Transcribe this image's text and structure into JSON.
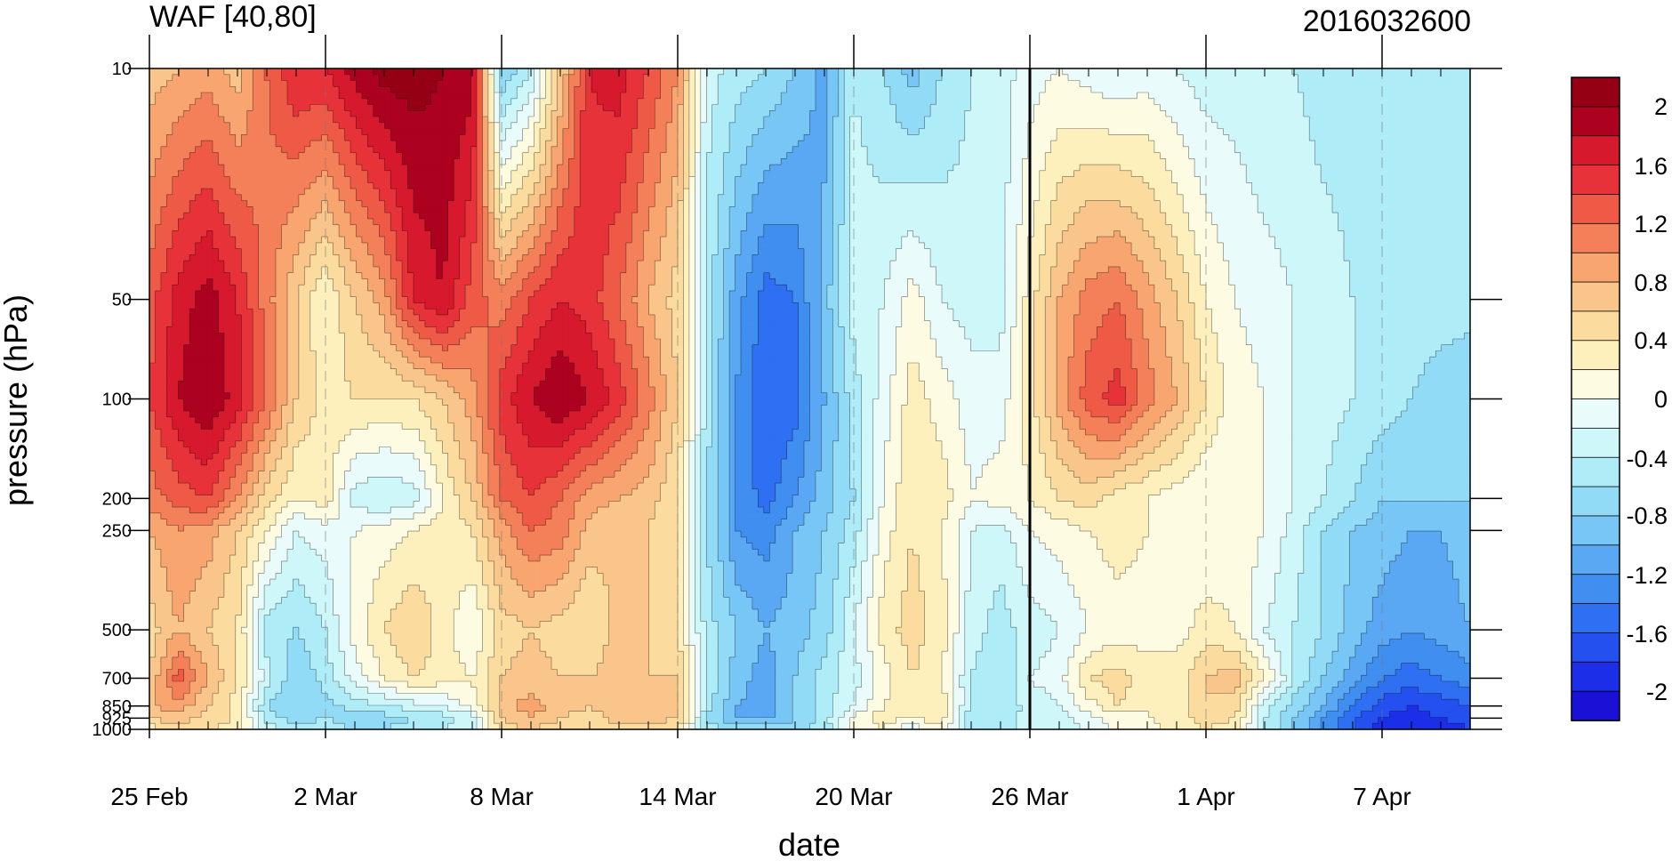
{
  "chart_data": {
    "type": "heatmap",
    "title": "WAF [40,80]",
    "subtitle": "2016032600",
    "xlabel": "date",
    "ylabel": "pressure (hPa)",
    "x_ticks": [
      "25 Feb",
      "2 Mar",
      "8 Mar",
      "14 Mar",
      "20 Mar",
      "26 Mar",
      "1 Apr",
      "7 Apr"
    ],
    "x_dates": [
      "2016-02-25",
      "2016-02-26",
      "2016-02-27",
      "2016-02-28",
      "2016-02-29",
      "2016-03-01",
      "2016-03-02",
      "2016-03-03",
      "2016-03-04",
      "2016-03-05",
      "2016-03-06",
      "2016-03-07",
      "2016-03-08",
      "2016-03-09",
      "2016-03-10",
      "2016-03-11",
      "2016-03-12",
      "2016-03-13",
      "2016-03-14",
      "2016-03-15",
      "2016-03-16",
      "2016-03-17",
      "2016-03-18",
      "2016-03-19",
      "2016-03-20",
      "2016-03-21",
      "2016-03-22",
      "2016-03-23",
      "2016-03-24",
      "2016-03-25",
      "2016-03-26",
      "2016-03-27",
      "2016-03-28",
      "2016-03-29",
      "2016-03-30",
      "2016-03-31",
      "2016-04-01",
      "2016-04-02",
      "2016-04-03",
      "2016-04-04",
      "2016-04-05",
      "2016-04-06",
      "2016-04-07",
      "2016-04-08",
      "2016-04-09",
      "2016-04-10"
    ],
    "y_ticks": [
      10,
      50,
      100,
      200,
      250,
      500,
      700,
      850,
      925,
      1000
    ],
    "y_scale": "log",
    "y_reversed": true,
    "ylim": [
      10,
      1000
    ],
    "marked_date": "2016-03-26",
    "levels": [
      1000,
      925,
      850,
      700,
      500,
      250,
      200,
      100,
      50,
      10
    ],
    "values": [
      [
        0.3,
        0.5,
        0.4,
        0.3,
        -0.3,
        -0.5,
        -0.4,
        -0.6,
        -0.6,
        -0.5,
        -0.4,
        -0.3,
        0.5,
        0.6,
        0.4,
        0.4,
        0.5,
        0.4,
        0.4,
        -0.5,
        -0.7,
        -0.6,
        -0.7,
        -0.5,
        0.0,
        0.2,
        -0.2,
        0.2,
        -0.6,
        -0.5,
        -0.3,
        -0.3,
        -0.2,
        0.1,
        0.1,
        0.3,
        0.4,
        0.3,
        -0.4,
        -0.8,
        -1.2,
        -1.6,
        -1.9,
        -2.0,
        -1.9,
        -1.8
      ],
      [
        0.6,
        0.7,
        0.5,
        0.4,
        -0.5,
        -0.7,
        -0.6,
        -0.8,
        -0.7,
        -0.6,
        -0.5,
        -0.3,
        0.6,
        0.8,
        0.6,
        0.5,
        0.7,
        0.7,
        0.6,
        -0.6,
        -1.0,
        -1.1,
        -0.8,
        -0.5,
        0.1,
        0.3,
        0.2,
        0.3,
        -0.6,
        -0.5,
        -0.3,
        -0.3,
        -0.1,
        0.1,
        0.2,
        0.3,
        0.5,
        0.4,
        -0.4,
        -0.8,
        -1.2,
        -1.6,
        -1.8,
        -1.9,
        -1.8,
        -1.7
      ],
      [
        0.8,
        0.9,
        0.6,
        0.3,
        -0.6,
        -0.8,
        -0.7,
        -0.5,
        -0.4,
        -0.3,
        -0.2,
        0.1,
        0.7,
        0.9,
        0.7,
        0.6,
        0.7,
        0.8,
        0.7,
        -0.5,
        -1.0,
        -1.1,
        -0.8,
        -0.5,
        -0.2,
        0.2,
        0.4,
        0.3,
        -0.4,
        -0.6,
        -0.3,
        -0.2,
        0.1,
        0.4,
        0.2,
        0.3,
        0.6,
        0.5,
        -0.3,
        -0.7,
        -1.0,
        -1.4,
        -1.7,
        -1.8,
        -1.7,
        -1.6
      ],
      [
        0.6,
        1.3,
        0.8,
        0.4,
        -0.3,
        -0.8,
        -0.5,
        -0.1,
        0.2,
        0.4,
        0.3,
        0.2,
        0.6,
        0.7,
        0.6,
        0.6,
        0.7,
        0.6,
        0.6,
        -0.4,
        -0.9,
        -1.1,
        -0.8,
        -0.5,
        -0.3,
        0.1,
        0.4,
        0.2,
        -0.4,
        -0.6,
        -0.2,
        -0.1,
        0.4,
        0.5,
        0.3,
        0.3,
        0.6,
        0.7,
        0.2,
        -0.4,
        -0.8,
        -1.1,
        -1.4,
        -1.5,
        -1.4,
        -1.3
      ],
      [
        0.5,
        0.8,
        0.6,
        0.4,
        -0.5,
        -0.6,
        -0.4,
        0.1,
        0.4,
        0.6,
        0.3,
        0.0,
        0.5,
        0.6,
        0.5,
        0.4,
        0.7,
        0.6,
        0.4,
        -0.5,
        -0.8,
        -1.0,
        -0.9,
        -0.7,
        -0.2,
        0.3,
        0.5,
        0.3,
        -0.3,
        -0.5,
        -0.3,
        -0.2,
        0.0,
        0.1,
        0.1,
        0.1,
        0.3,
        0.2,
        -0.2,
        -0.4,
        -0.6,
        -0.9,
        -1.1,
        -1.2,
        -1.1,
        -1.0
      ],
      [
        0.8,
        1.0,
        0.9,
        0.6,
        0.2,
        -0.2,
        -0.1,
        0.0,
        0.1,
        0.2,
        0.3,
        0.4,
        0.9,
        1.2,
        1.1,
        0.7,
        0.6,
        0.6,
        0.4,
        -0.6,
        -1.2,
        -1.3,
        -1.0,
        -0.8,
        -0.5,
        0.1,
        0.4,
        0.2,
        -0.2,
        -0.3,
        0.0,
        0.1,
        0.2,
        0.3,
        0.2,
        0.1,
        0.0,
        0.1,
        0.0,
        -0.3,
        -0.6,
        -0.8,
        -0.9,
        -1.0,
        -1.0,
        -0.9
      ],
      [
        1.1,
        1.3,
        1.4,
        1.0,
        0.5,
        0.2,
        0.3,
        -0.3,
        -0.4,
        -0.3,
        0.2,
        0.6,
        1.2,
        1.4,
        1.2,
        0.9,
        0.8,
        0.7,
        0.4,
        -0.6,
        -1.2,
        -1.5,
        -1.2,
        -0.9,
        -0.6,
        0.0,
        0.4,
        0.3,
        0.0,
        0.1,
        0.2,
        0.4,
        0.5,
        0.3,
        0.2,
        0.1,
        0.0,
        0.0,
        0.0,
        -0.2,
        -0.4,
        -0.6,
        -0.8,
        -0.8,
        -0.8,
        -0.8
      ],
      [
        1.4,
        1.8,
        2.0,
        1.7,
        1.2,
        0.6,
        0.3,
        0.4,
        0.4,
        0.4,
        0.6,
        0.9,
        1.5,
        1.8,
        2.0,
        1.8,
        1.5,
        1.1,
        0.6,
        -0.5,
        -1.2,
        -1.6,
        -1.5,
        -1.0,
        -0.5,
        -0.1,
        0.3,
        0.1,
        -0.1,
        -0.1,
        0.3,
        0.9,
        1.3,
        1.5,
        1.1,
        0.8,
        0.4,
        0.1,
        0.0,
        -0.2,
        -0.3,
        -0.4,
        -0.5,
        -0.6,
        -0.7,
        -0.8
      ],
      [
        1.3,
        1.7,
        1.9,
        1.6,
        1.1,
        0.6,
        0.2,
        0.6,
        0.9,
        1.6,
        1.8,
        1.3,
        1.1,
        1.4,
        1.6,
        1.5,
        1.2,
        0.8,
        0.5,
        -0.5,
        -1.1,
        -1.5,
        -1.4,
        -0.9,
        -0.3,
        -0.2,
        0.1,
        -0.2,
        -0.3,
        -0.3,
        0.3,
        0.8,
        1.1,
        1.2,
        0.9,
        0.6,
        0.2,
        0.0,
        -0.1,
        -0.2,
        -0.3,
        -0.4,
        -0.5,
        -0.5,
        -0.5,
        -0.5
      ],
      [
        0.7,
        0.8,
        0.9,
        0.7,
        1.2,
        1.6,
        1.6,
        1.9,
        2.1,
        2.1,
        2.0,
        1.9,
        -0.8,
        -0.4,
        0.6,
        1.6,
        1.7,
        1.4,
        1.0,
        -0.3,
        -0.5,
        -0.6,
        -0.8,
        -1.1,
        -0.4,
        -0.6,
        -0.9,
        -0.6,
        -0.4,
        -0.3,
        -0.1,
        0.0,
        -0.1,
        -0.2,
        -0.1,
        -0.2,
        -0.3,
        -0.3,
        -0.4,
        -0.4,
        -0.5,
        -0.5,
        -0.6,
        -0.6,
        -0.6,
        -0.6
      ]
    ],
    "colorbar": {
      "labels": [
        "2",
        "1.6",
        "1.2",
        "0.8",
        "0.4",
        "0",
        "-0.4",
        "-0.8",
        "-1.2",
        "-1.6",
        "-2"
      ],
      "bounds": [
        -2.0,
        -1.8,
        -1.6,
        -1.4,
        -1.2,
        -1.0,
        -0.8,
        -0.6,
        -0.4,
        -0.2,
        0.0,
        0.2,
        0.4,
        0.6,
        0.8,
        1.0,
        1.2,
        1.4,
        1.6,
        1.8,
        2.0
      ],
      "colors": [
        "#1a10d6",
        "#1d2ee8",
        "#2550f0",
        "#2f6ff2",
        "#3f8ef0",
        "#5aa8f4",
        "#78c6f6",
        "#92dbf7",
        "#aeecf8",
        "#cef7fa",
        "#eafbfb",
        "#fdfbe2",
        "#fdf0bd",
        "#fbdc9e",
        "#f9c58b",
        "#f8a570",
        "#f4805a",
        "#ef5a46",
        "#e8323a",
        "#d7192d",
        "#ad0120",
        "#960015"
      ],
      "position": "right"
    }
  }
}
